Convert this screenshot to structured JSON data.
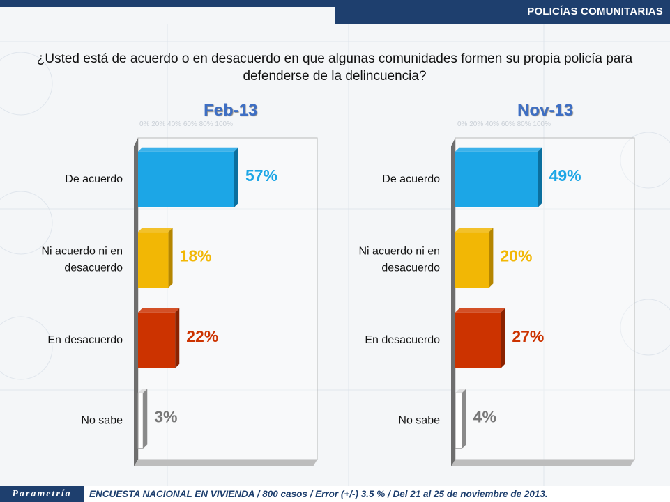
{
  "header": {
    "section_title": "POLICÍAS COMUNITARIAS"
  },
  "question": "¿Usted está de acuerdo o en desacuerdo en que algunas comunidades formen su propia policía para defenderse de la delincuencia?",
  "axis_ticks": "0%   20%   40%   60%   80%   100%",
  "footer": {
    "logo": "Parametría",
    "text": "ENCUESTA NACIONAL EN VIVIENDA / 800 casos / Error (+/-) 3.5 % / Del 21 al 25 de noviembre de 2013."
  },
  "colors": {
    "de_acuerdo": "#1ca6e6",
    "ni": "#f2b705",
    "desacuerdo": "#cc3300",
    "no_sabe": "#bdbdbd"
  },
  "chart_data": [
    {
      "type": "bar",
      "title": "Feb-13",
      "categories": [
        "De acuerdo",
        "Ni acuerdo ni en desacuerdo",
        "En desacuerdo",
        "No sabe"
      ],
      "values": [
        57,
        18,
        22,
        3
      ],
      "value_labels": [
        "57%",
        "18%",
        "22%",
        "3%"
      ],
      "ylim": [
        0,
        100
      ],
      "orientation": "horizontal"
    },
    {
      "type": "bar",
      "title": "Nov-13",
      "categories": [
        "De acuerdo",
        "Ni acuerdo ni en desacuerdo",
        "En desacuerdo",
        "No sabe"
      ],
      "values": [
        49,
        20,
        27,
        4
      ],
      "value_labels": [
        "49%",
        "20%",
        "27%",
        "4%"
      ],
      "ylim": [
        0,
        100
      ],
      "orientation": "horizontal"
    }
  ]
}
